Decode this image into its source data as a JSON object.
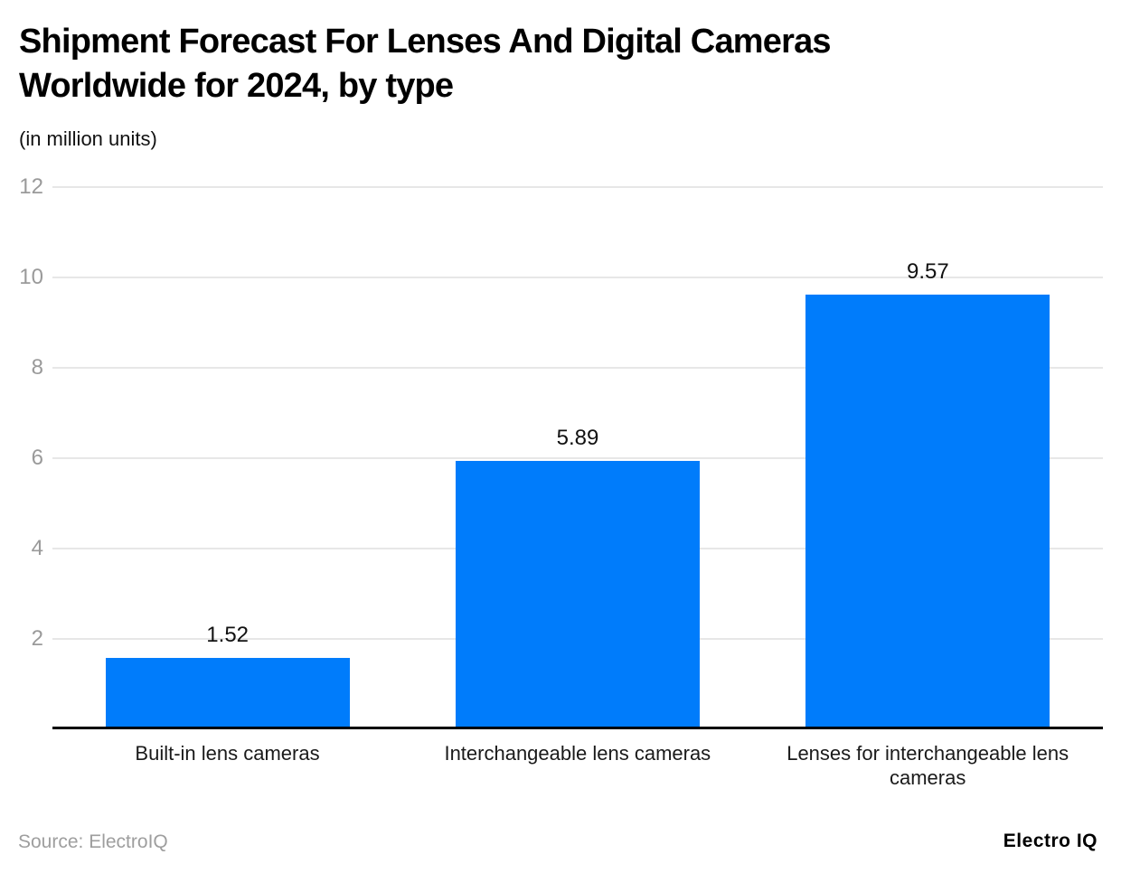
{
  "header": {
    "title_lines": [
      "Shipment Forecast For Lenses And Digital Cameras",
      "Worldwide for 2024, by type"
    ],
    "subtitle": "(in million units)"
  },
  "chart_data": {
    "type": "bar",
    "title": "Shipment Forecast For Lenses And Digital Cameras Worldwide for 2024, by type",
    "subtitle": "(in million units)",
    "categories": [
      "Built-in lens cameras",
      "Interchangeable lens cameras",
      "Lenses for interchangeable lens cameras"
    ],
    "values": [
      1.52,
      5.89,
      9.57
    ],
    "value_labels": [
      "1.52",
      "5.89",
      "9.57"
    ],
    "xlabel": "",
    "ylabel": "",
    "ylim": [
      0,
      12
    ],
    "yticks": [
      2,
      4,
      6,
      8,
      10,
      12
    ],
    "grid": true,
    "legend": false,
    "bar_color": "#007cfb",
    "gridline_color": "#e7e7e7",
    "axis_label_color": "#9a9a9a",
    "baseline_color": "#000000"
  },
  "footer": {
    "source": "Source: ElectroIQ",
    "brand": "Electro IQ"
  }
}
